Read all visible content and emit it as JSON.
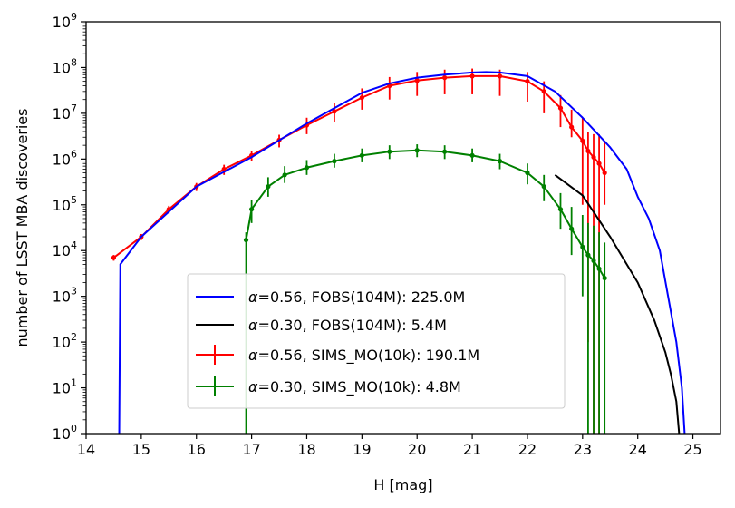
{
  "chart_data": {
    "type": "line",
    "title": "",
    "xlabel": "H [mag]",
    "ylabel": "number of LSST MBA discoveries",
    "xlim": [
      14.0,
      25.5
    ],
    "ylim": [
      1,
      1000000000
    ],
    "yscale": "log",
    "xticks": [
      14,
      15,
      16,
      17,
      18,
      19,
      20,
      21,
      22,
      23,
      24,
      25
    ],
    "xtick_labels": [
      "14",
      "15",
      "16",
      "17",
      "18",
      "19",
      "20",
      "21",
      "22",
      "23",
      "24",
      "25"
    ],
    "ytick_exponents": [
      0,
      1,
      2,
      3,
      4,
      5,
      6,
      7,
      8,
      9
    ],
    "ytick_base": "10",
    "grid": false,
    "legend_placement": "lower-center",
    "series": [
      {
        "name": "α=0.56, FOBS(104M):  225.0M",
        "legend_alpha": "α",
        "legend_rest": "=0.56, FOBS(104M):  225.0M",
        "color": "#0000ff",
        "style": "line",
        "x": [
          14.6,
          14.62,
          15.0,
          16.0,
          17.0,
          18.0,
          19.0,
          19.5,
          20.0,
          20.5,
          21.0,
          21.25,
          21.5,
          22.0,
          22.5,
          23.0,
          23.5,
          23.8,
          24.0,
          24.2,
          24.4,
          24.55,
          24.7,
          24.8,
          24.85
        ],
        "y": [
          1,
          5000,
          20000,
          250000,
          1100000,
          6000000,
          28000000,
          45000000,
          60000000,
          70000000,
          78000000,
          80000000,
          78000000,
          65000000,
          30000000,
          8000000,
          1800000,
          600000,
          150000,
          50000,
          10000,
          1000,
          100,
          10,
          1
        ]
      },
      {
        "name": "α=0.30, FOBS(104M):    5.4M",
        "legend_alpha": "α",
        "legend_rest": "=0.30, FOBS(104M):    5.4M",
        "color": "#000000",
        "style": "line",
        "x": [
          22.5,
          23.0,
          23.5,
          24.0,
          24.3,
          24.5,
          24.6,
          24.7,
          24.75
        ],
        "y": [
          450000,
          160000,
          20000,
          2000,
          300,
          60,
          20,
          5,
          1
        ]
      },
      {
        "name": "α=0.56, SIMS_MO(10k):  190.1M",
        "legend_alpha": "α",
        "legend_rest": "=0.56, SIMS_MO(10k):  190.1M",
        "color": "#ff0000",
        "style": "errorbar",
        "x": [
          14.5,
          15.0,
          15.5,
          16.0,
          16.5,
          17.0,
          17.5,
          18.0,
          18.5,
          19.0,
          19.5,
          20.0,
          20.5,
          21.0,
          21.5,
          22.0,
          22.3,
          22.6,
          22.8,
          23.0,
          23.1,
          23.2,
          23.3,
          23.4
        ],
        "y": [
          7000,
          20000,
          80000,
          250000,
          600000,
          1200000,
          2600000,
          5500000,
          11000000,
          22000000,
          40000000,
          52000000,
          60000000,
          65000000,
          65000000,
          50000000,
          30000000,
          13000000,
          5000000,
          2500000,
          1500000,
          1100000,
          800000,
          500000
        ],
        "yerr_low": [
          6000,
          17000,
          65000,
          200000,
          450000,
          900000,
          1800000,
          3500000,
          6500000,
          12000000,
          20000000,
          24000000,
          26000000,
          26000000,
          24000000,
          18000000,
          10000000,
          5000000,
          3000000,
          100000,
          100,
          1,
          1,
          100000
        ],
        "yerr_high": [
          8000,
          23000,
          95000,
          300000,
          750000,
          1500000,
          3400000,
          8000000,
          17000000,
          35000000,
          62000000,
          80000000,
          90000000,
          95000000,
          90000000,
          80000000,
          50000000,
          25000000,
          12000000,
          8000000,
          4000000,
          3500000,
          3500000,
          2500000
        ]
      },
      {
        "name": "α=0.30, SIMS_MO(10k):   4.8M",
        "legend_alpha": "α",
        "legend_rest": "=0.30, SIMS_MO(10k):   4.8M",
        "color": "#008000",
        "style": "errorbar",
        "x": [
          16.9,
          17.0,
          17.3,
          17.6,
          18.0,
          18.5,
          19.0,
          19.5,
          20.0,
          20.5,
          21.0,
          21.5,
          22.0,
          22.3,
          22.6,
          22.8,
          23.0,
          23.1,
          23.2,
          23.3,
          23.4
        ],
        "y": [
          17000,
          80000,
          250000,
          450000,
          650000,
          900000,
          1200000,
          1450000,
          1550000,
          1450000,
          1200000,
          900000,
          500000,
          250000,
          80000,
          30000,
          12000,
          8000,
          6000,
          4000,
          2500
        ],
        "yerr_low": [
          1,
          40000,
          150000,
          300000,
          450000,
          650000,
          850000,
          1000000,
          1100000,
          1000000,
          850000,
          600000,
          280000,
          120000,
          30000,
          8000,
          1000,
          1,
          1,
          1,
          1
        ],
        "yerr_high": [
          25000,
          130000,
          400000,
          700000,
          950000,
          1300000,
          1700000,
          2000000,
          2100000,
          2000000,
          1700000,
          1300000,
          800000,
          450000,
          180000,
          90000,
          60000,
          40000,
          35000,
          25000,
          15000
        ]
      }
    ]
  }
}
